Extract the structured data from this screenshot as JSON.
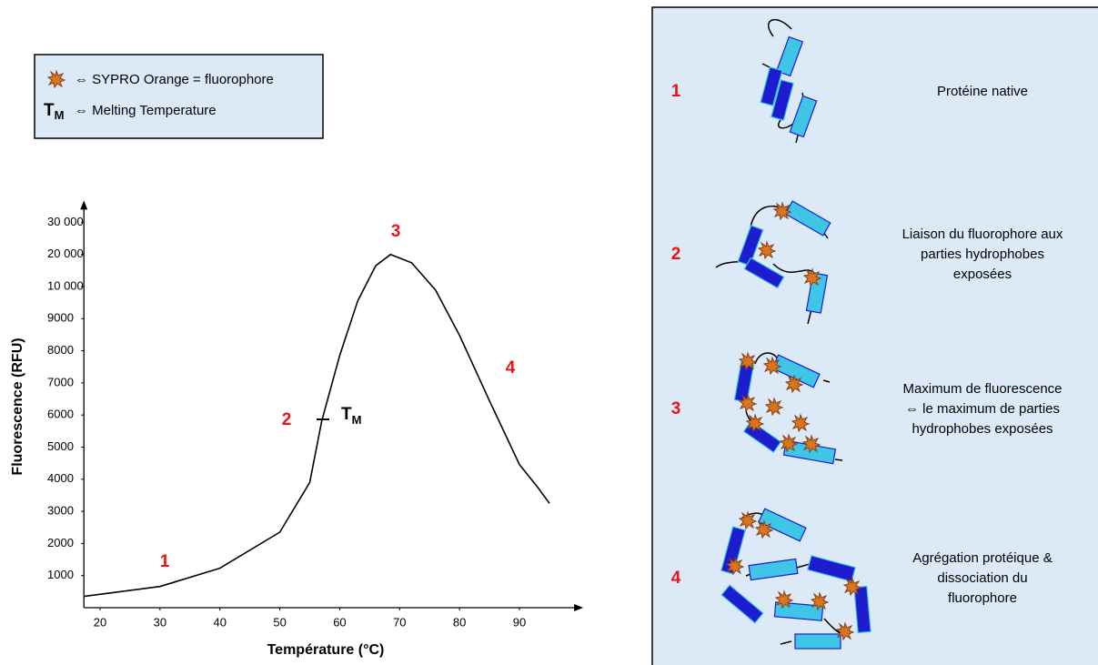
{
  "legend_box": {
    "fluorophore": "⇔ SYPRO Orange = fluorophore",
    "tm_main": "T",
    "tm_sub": "M",
    "tm_text": "⇔ Melting Temperature"
  },
  "chart_data": {
    "type": "line",
    "xlabel": "Température (°C)",
    "ylabel": "Fluorescence (RFU)",
    "x": [
      17.3,
      30,
      40,
      50,
      55,
      57,
      60,
      63,
      66,
      68.5,
      72,
      76,
      80,
      85,
      90,
      93,
      95
    ],
    "series": [
      {
        "color": "#000000",
        "values": [
          350,
          660,
          1230,
          2350,
          3900,
          5820,
          7850,
          9550,
          16500,
          20000,
          17400,
          9890,
          8480,
          6440,
          4460,
          3760,
          3250
        ]
      }
    ],
    "xlim": [
      17.3,
      97
    ],
    "xticks": [
      20,
      30,
      40,
      50,
      60,
      70,
      80,
      90
    ],
    "ylim": [
      0,
      30000
    ],
    "yticks": [
      1000,
      2000,
      3000,
      4000,
      5000,
      6000,
      7000,
      8000,
      9000,
      {
        "value": 10000,
        "label": "10 000"
      },
      {
        "value": 20000,
        "label": "20 000"
      },
      {
        "value": 30000,
        "label": "30 000"
      }
    ],
    "phase_labels": [
      "1",
      "2",
      "3",
      "4"
    ],
    "tm_main": "T",
    "tm_sub": "M"
  },
  "steps": [
    {
      "number": "1",
      "text": [
        "Protéine native"
      ]
    },
    {
      "number": "2",
      "text": [
        "Liaison du fluorophore aux",
        "parties hydrophobes",
        "exposées"
      ]
    },
    {
      "number": "3",
      "text": [
        "Maximum de fluorescence",
        "⇔ le maximum de parties",
        "hydrophobes exposées"
      ]
    },
    {
      "number": "4",
      "text": [
        "Agrégation protéique &",
        "dissociation du",
        "fluorophore"
      ]
    }
  ]
}
